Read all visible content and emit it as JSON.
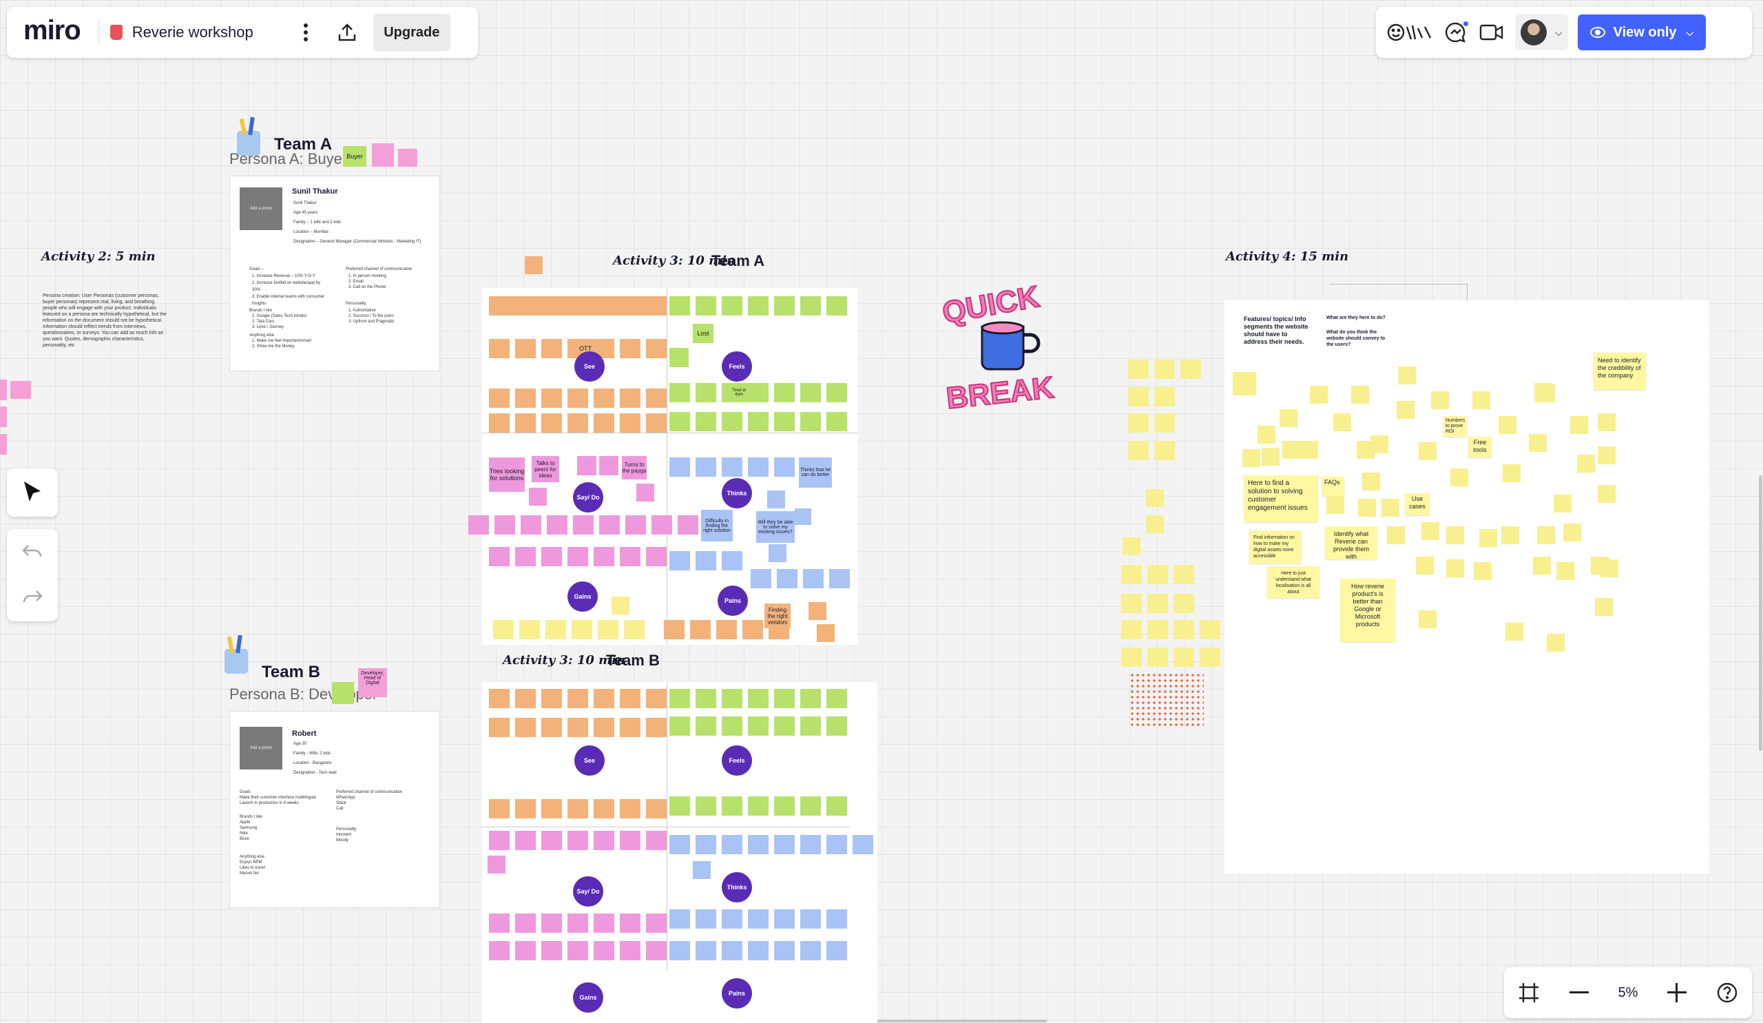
{
  "header": {
    "logo": "miro",
    "board_name": "Reverie workshop",
    "upgrade_label": "Upgrade",
    "view_only_label": "View only",
    "accent_color": "#4262ff"
  },
  "zoom": {
    "value": "5%"
  },
  "canvas": {
    "team_a_title": "Team A",
    "team_a_persona": "Persona A: Buyer",
    "team_a_tag": "Buyer",
    "team_b_title": "Team B",
    "team_b_persona": "Persona B: Developer",
    "team_b_tag": "Developer, Head of Digital",
    "activity2": "Activity 2: 5 min",
    "activity3a": "Activity 3: 10 min",
    "activity3a_team": "Team A",
    "activity3b": "Activity 3: 10 min",
    "activity3b_team": "Team B",
    "activity4": "Activity 4: 15 min",
    "persona_a": {
      "name": "Sunil Thakur",
      "lines": [
        "Sunil Thakur",
        "Age 45 years",
        "Family – 1 wife and 2 kids",
        "Location – Mumbai",
        "Designation – General Manager (Commercial Vehicles - Marketing IT)"
      ],
      "photo": "Add a photo",
      "goals_title": "Goals –",
      "goals": [
        "1. Increase Revenue – 10% Y-O-Y",
        "2. Increase footfall on website/app by 30%",
        "3. Enable internal teams with consumer insights"
      ],
      "brands_title": "Brands I like",
      "brands": [
        "1. Google (Sales Tech trends)",
        "2. Tata Cars",
        "3. Lime / Journey"
      ],
      "anything_title": "Anything else",
      "anything": [
        "1. Make me feel important/smart",
        "2. Show me the Money"
      ],
      "channel_title": "Preferred channel of communication",
      "channel": [
        "1. In person meeting",
        "2. Email",
        "3. Call on the Phone"
      ],
      "personality_title": "Personality",
      "personality": [
        "1. Authoritative",
        "2. Succinct / To the point",
        "3. Upfront and Pragmatic"
      ]
    },
    "persona_b": {
      "name": "Robert",
      "lines": [
        "Age 30",
        "Family - Wife, 2 kids",
        "Location - Bangalore",
        "Designation - Tech lead"
      ],
      "photo": "Add a photo",
      "goals_title": "Goals",
      "goals": [
        "Make their customer interface multilingual",
        "Launch in production in 8 weeks"
      ],
      "brands_title": "Brands I like",
      "brands": [
        "Apple",
        "Samsung",
        "Nike",
        "Bose"
      ],
      "anything_title": "Anything else",
      "anything": [
        "Enjoys BPM",
        "Likes to travel",
        "Marvel fan"
      ],
      "channel_title": "Preferred channel of communication",
      "channel": [
        "WhatsApp",
        "Slack",
        "Call"
      ],
      "personality_title": "Personality",
      "personality": [
        "Introvert",
        "Moody"
      ]
    },
    "activity2_text": "Persona creation: User Personas (customer personas, buyer personas) represent real, living, and breathing people who will engage with your product. Individuals featured on a persona are technically hypothetical, but the information on the document should not be hypothetical. Information should reflect trends from interviews, questionnaires, or surveys. You can add as much info as you want. Quotes, demographic characteristics, personality, etc",
    "quadrant_labels": {
      "see": "See",
      "feels": "Feels",
      "say_do": "Say/ Do",
      "thinks": "Thinks",
      "gains": "Gains",
      "pains": "Pains"
    },
    "quick_break": [
      "QUICK",
      "BREAK"
    ],
    "activity4_headings": [
      "Features/ topics/ Info segments the website should have to address their needs.",
      "What are they here to do?",
      "What do you think the website should convey to the users?"
    ],
    "activity4_notes": [
      "Need to identify the credibility of the company",
      "Here to find a solution to solving customer engagement issues",
      "How reverie product's is better than Google or Microsoft products",
      "Identify what Reverie can provide them with",
      "Find information on how to make my digital assets more accessible",
      "Here to just understand what localisation is all about",
      "Use cases",
      "FAQs",
      "Free tools",
      "Numbers to prove ROI"
    ],
    "team_a_notes": [
      "Tries looking for solutions",
      "Talks to peers for ideas",
      "Turns to the payga",
      "Lost",
      "OTT",
      "Tired at 4pm",
      "Finding the right solution",
      "Difficulty in finding the right solution",
      "Finding the right vendors",
      "Thinks that he can do better",
      "Will they be able to solve my existing issues?"
    ]
  }
}
